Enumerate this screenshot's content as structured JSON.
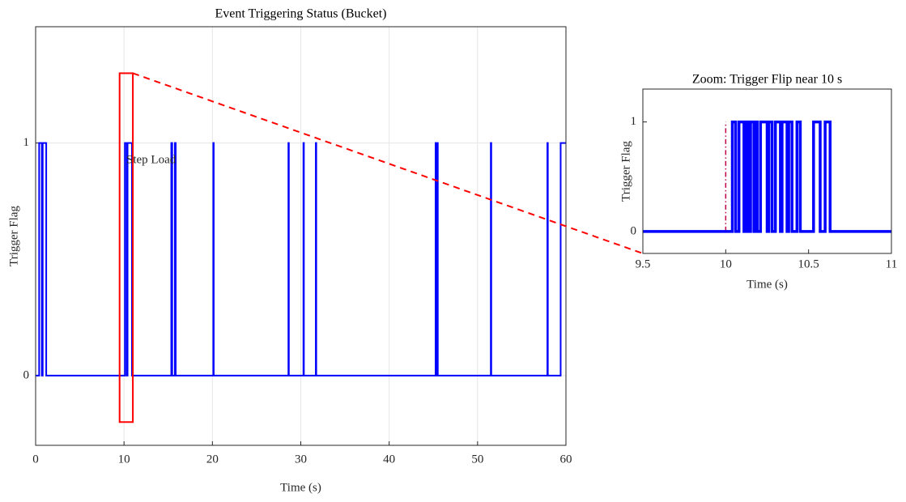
{
  "chart_data": [
    {
      "type": "line",
      "title": "Event Triggering Status (Bucket)",
      "xlabel": "Time (s)",
      "ylabel": "Trigger Flag",
      "annotation": "Step Load",
      "color": "#0000ff",
      "grid": true,
      "xlim": [
        0,
        60
      ],
      "ylim": [
        -0.3,
        1.5
      ],
      "xticks": [
        0,
        10,
        20,
        30,
        40,
        50,
        60
      ],
      "yticks": [
        0,
        1
      ],
      "x": [
        0,
        0.4,
        0.4,
        0.7,
        0.7,
        0.8,
        0.8,
        1.2,
        1.2,
        10.1,
        10.1,
        10.3,
        10.3,
        10.4,
        10.4,
        10.9,
        10.9,
        15.35,
        15.35,
        15.45,
        15.45,
        15.75,
        15.75,
        15.85,
        15.85,
        20.1,
        20.1,
        20.15,
        20.15,
        28.6,
        28.6,
        28.65,
        28.65,
        30.3,
        30.3,
        30.35,
        30.35,
        31.7,
        31.7,
        31.75,
        31.75,
        45.25,
        45.25,
        45.3,
        45.3,
        45.45,
        45.45,
        45.5,
        45.5,
        51.5,
        51.5,
        51.55,
        51.55,
        57.9,
        57.9,
        57.95,
        57.95,
        59.4,
        59.4,
        60
      ],
      "values": [
        0,
        0,
        1,
        1,
        0,
        0,
        1,
        1,
        0,
        0,
        1,
        1,
        0,
        0,
        1,
        1,
        0,
        0,
        1,
        1,
        0,
        0,
        1,
        1,
        0,
        0,
        1,
        1,
        0,
        0,
        1,
        1,
        0,
        0,
        1,
        1,
        0,
        0,
        1,
        1,
        0,
        0,
        1,
        1,
        0,
        0,
        1,
        1,
        0,
        0,
        1,
        1,
        0,
        0,
        1,
        1,
        0,
        0,
        1,
        1
      ]
    },
    {
      "type": "line",
      "title": "Zoom: Trigger Flip near 10 s",
      "xlabel": "Time (s)",
      "ylabel": "Trigger Flag",
      "color": "#0000ff",
      "grid": false,
      "marker_x": 10,
      "marker_color": "#c0004a",
      "xlim": [
        9.5,
        11
      ],
      "ylim": [
        -0.2,
        1.3
      ],
      "xticks": [
        9.5,
        10,
        10.5,
        11
      ],
      "yticks": [
        0,
        1
      ],
      "x": [
        9.5,
        10.04,
        10.04,
        10.06,
        10.06,
        10.08,
        10.08,
        10.11,
        10.11,
        10.125,
        10.125,
        10.14,
        10.14,
        10.15,
        10.15,
        10.17,
        10.17,
        10.175,
        10.175,
        10.19,
        10.19,
        10.21,
        10.21,
        10.25,
        10.25,
        10.26,
        10.26,
        10.28,
        10.28,
        10.3,
        10.3,
        10.33,
        10.33,
        10.34,
        10.34,
        10.37,
        10.37,
        10.38,
        10.38,
        10.4,
        10.4,
        10.43,
        10.43,
        10.45,
        10.45,
        10.53,
        10.53,
        10.57,
        10.57,
        10.6,
        10.6,
        10.63,
        10.63,
        11
      ],
      "values": [
        0,
        0,
        1,
        1,
        0,
        0,
        1,
        1,
        0,
        0,
        1,
        1,
        0,
        0,
        1,
        1,
        0,
        0,
        1,
        1,
        0,
        0,
        1,
        1,
        0,
        0,
        1,
        1,
        0,
        0,
        1,
        1,
        0,
        0,
        1,
        1,
        0,
        0,
        1,
        1,
        0,
        0,
        1,
        1,
        0,
        0,
        1,
        1,
        0,
        0,
        1,
        1,
        0,
        0
      ]
    }
  ]
}
